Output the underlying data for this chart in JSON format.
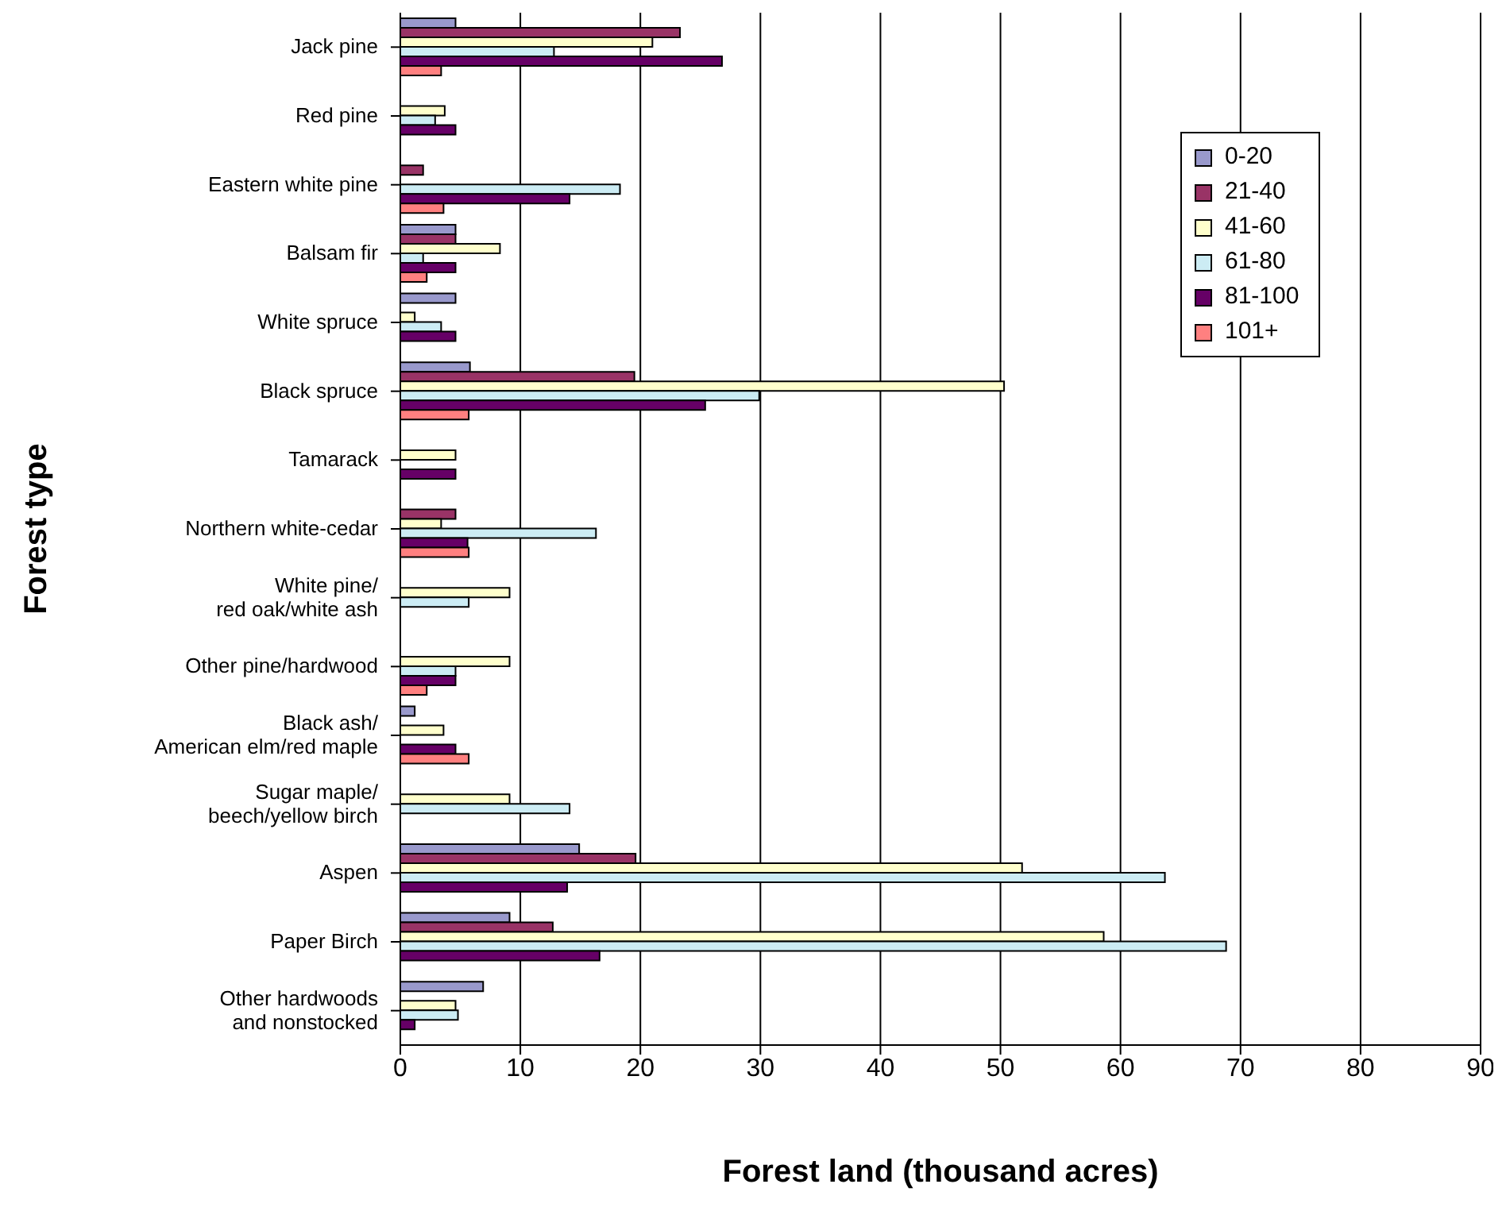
{
  "chart_data": {
    "type": "bar",
    "orientation": "horizontal",
    "xlabel": "Forest land (thousand acres)",
    "ylabel": "Forest type",
    "categories": [
      "Jack pine",
      "Red pine",
      "Eastern white pine",
      "Balsam fir",
      "White spruce",
      "Black spruce",
      "Tamarack",
      "Northern white-cedar",
      "White pine/\nred oak/white ash",
      "Other pine/hardwood",
      "Black ash/\nAmerican elm/red maple",
      "Sugar maple/\nbeech/yellow birch",
      "Aspen",
      "Paper Birch",
      "Other hardwoods\nand nonstocked"
    ],
    "series": [
      {
        "name": "0-20",
        "color": "#9999cc",
        "values": [
          4.6,
          null,
          null,
          4.6,
          4.6,
          5.8,
          null,
          null,
          null,
          null,
          1.2,
          null,
          14.9,
          9.1,
          6.9
        ]
      },
      {
        "name": "21-40",
        "color": "#993366",
        "values": [
          23.3,
          null,
          1.9,
          4.6,
          null,
          19.5,
          null,
          4.6,
          null,
          null,
          null,
          null,
          19.6,
          12.7,
          null
        ]
      },
      {
        "name": "41-60",
        "color": "#ffffcc",
        "values": [
          21.0,
          3.7,
          null,
          8.3,
          1.2,
          50.3,
          4.6,
          3.4,
          9.1,
          9.1,
          3.6,
          9.1,
          51.8,
          58.6,
          4.6
        ]
      },
      {
        "name": "61-80",
        "color": "#ccecf4",
        "values": [
          12.8,
          2.9,
          18.3,
          1.9,
          3.4,
          29.9,
          null,
          16.3,
          5.7,
          4.6,
          null,
          14.1,
          63.7,
          68.8,
          4.8
        ]
      },
      {
        "name": "81-100",
        "color": "#660066",
        "values": [
          26.8,
          4.6,
          14.1,
          4.6,
          4.6,
          25.4,
          4.6,
          5.6,
          null,
          4.6,
          4.6,
          null,
          13.9,
          16.6,
          1.2
        ]
      },
      {
        "name": "101+",
        "color": "#ff8080",
        "values": [
          3.4,
          null,
          3.6,
          2.2,
          null,
          5.7,
          null,
          5.7,
          null,
          2.2,
          5.7,
          null,
          null,
          null,
          null
        ]
      }
    ],
    "xlim": [
      0,
      90
    ],
    "xticks": [
      0,
      10,
      20,
      30,
      40,
      50,
      60,
      70,
      80,
      90
    ],
    "grid": "x",
    "legend": "right"
  }
}
